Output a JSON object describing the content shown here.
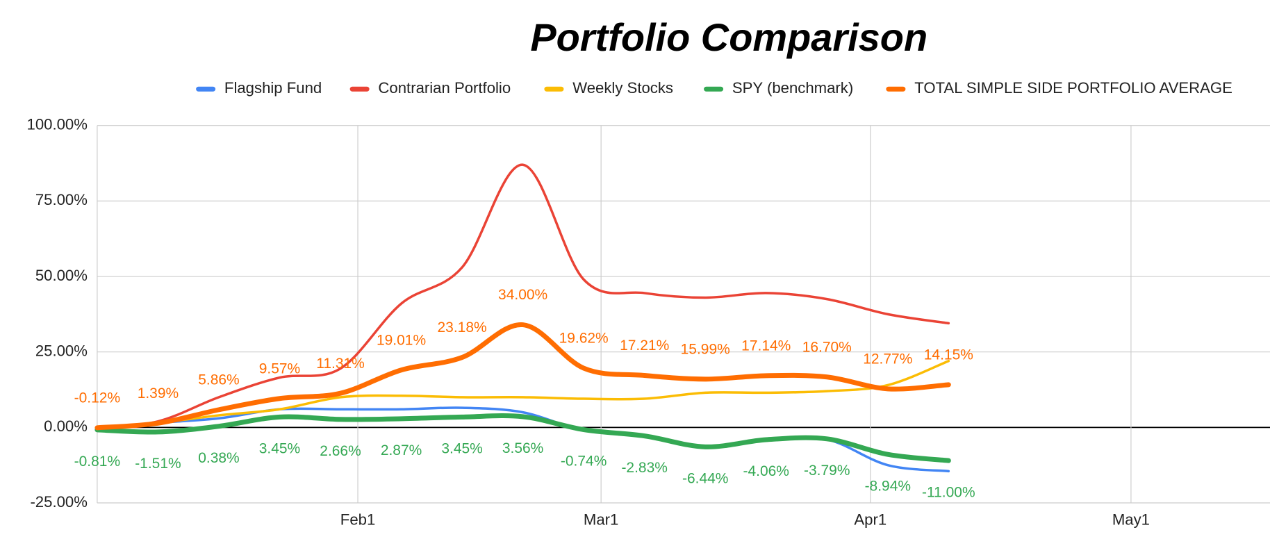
{
  "chart_data": {
    "type": "line",
    "title": "Portfolio Comparison",
    "x": [
      "Jan2",
      "Jan9",
      "Jan16",
      "Jan23",
      "Jan30",
      "Feb6",
      "Feb13",
      "Feb20",
      "Feb27",
      "Mar6",
      "Mar13",
      "Mar20",
      "Mar27",
      "Apr3",
      "Apr10"
    ],
    "xlim": [
      "Jan2",
      "May17"
    ],
    "xticks": [
      "Feb1",
      "Mar1",
      "Apr1",
      "May1"
    ],
    "ylim": [
      -25,
      100
    ],
    "yticks": [
      {
        "value": -25,
        "label": "-25.00%"
      },
      {
        "value": 0,
        "label": "0.00%"
      },
      {
        "value": 25,
        "label": "25.00%"
      },
      {
        "value": 50,
        "label": "50.00%"
      },
      {
        "value": 75,
        "label": "75.00%"
      },
      {
        "value": 100,
        "label": "100.00%"
      }
    ],
    "grid": true,
    "legend": "top",
    "series": [
      {
        "name": "Flagship Fund",
        "color": "#4285f4",
        "line_width": 3,
        "values": [
          -0.5,
          1.5,
          3,
          6,
          6,
          6,
          6.5,
          5,
          -1,
          -2.8,
          -6.4,
          -4,
          -4,
          -12.5,
          -14.5
        ]
      },
      {
        "name": "Contrarian Portfolio",
        "color": "#ea4335",
        "line_width": 3,
        "values": [
          0,
          2,
          10,
          16.5,
          19.5,
          41,
          53,
          87,
          49,
          44.5,
          43,
          44.5,
          42.5,
          37.5,
          34.5
        ]
      },
      {
        "name": "Weekly Stocks",
        "color": "#fbbc04",
        "line_width": 3,
        "values": [
          0,
          1.5,
          4,
          6,
          10,
          10.5,
          10,
          10,
          9.5,
          9.5,
          11.5,
          11.5,
          12,
          14,
          22
        ]
      },
      {
        "name": "SPY (benchmark)",
        "color": "#34a853",
        "line_width": 6,
        "label_position": "below",
        "values": [
          -0.81,
          -1.51,
          0.38,
          3.45,
          2.66,
          2.87,
          3.45,
          3.56,
          -0.74,
          -2.83,
          -6.44,
          -4.06,
          -3.79,
          -8.94,
          -11.0
        ],
        "value_labels": [
          "-0.81%",
          "-1.51%",
          "0.38%",
          "3.45%",
          "2.66%",
          "2.87%",
          "3.45%",
          "3.56%",
          "-0.74%",
          "-2.83%",
          "-6.44%",
          "-4.06%",
          "-3.79%",
          "-8.94%",
          "-11.00%"
        ]
      },
      {
        "name": "TOTAL SIMPLE SIDE PORTFOLIO AVERAGE",
        "color": "#ff6d01",
        "line_width": 6,
        "label_position": "above",
        "values": [
          -0.12,
          1.39,
          5.86,
          9.57,
          11.31,
          19.01,
          23.18,
          34.0,
          19.62,
          17.21,
          15.99,
          17.14,
          16.7,
          12.77,
          14.15
        ],
        "value_labels": [
          "-0.12%",
          "1.39%",
          "5.86%",
          "9.57%",
          "11.31%",
          "19.01%",
          "23.18%",
          "34.00%",
          "19.62%",
          "17.21%",
          "15.99%",
          "17.14%",
          "16.70%",
          "12.77%",
          "14.15%"
        ]
      }
    ]
  }
}
